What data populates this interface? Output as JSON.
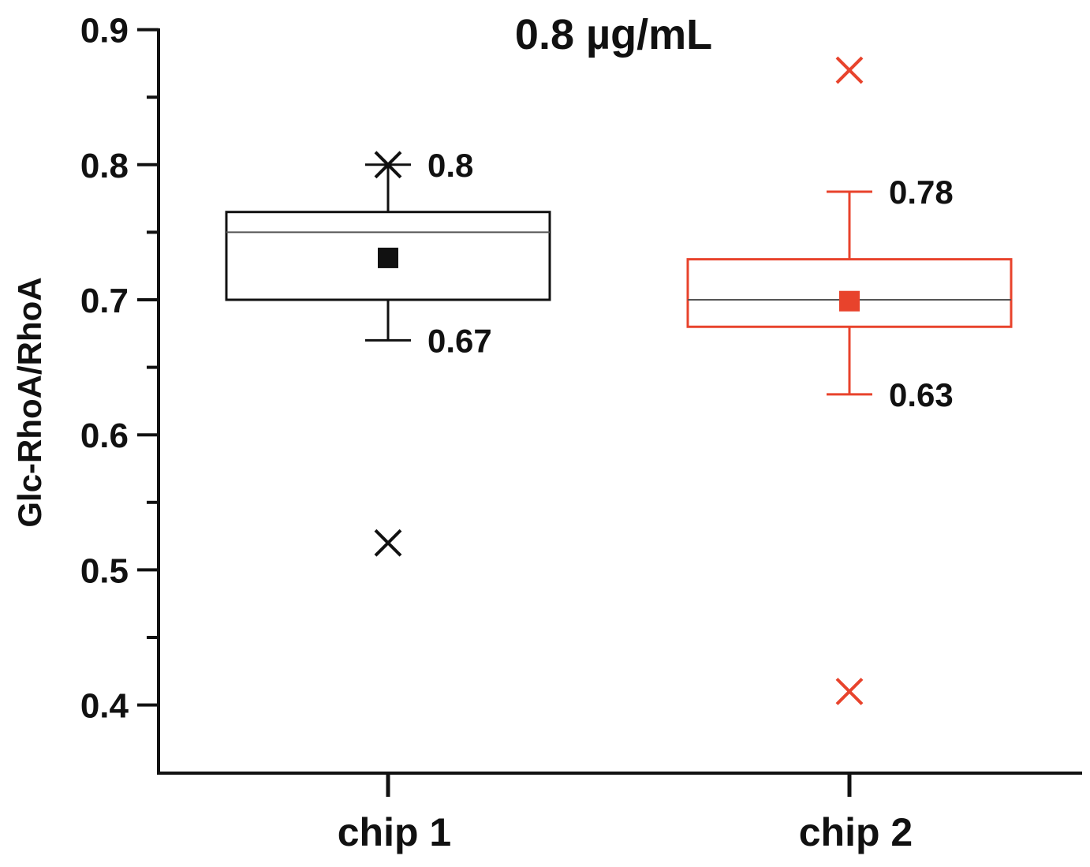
{
  "chart_data": {
    "type": "box",
    "title": "0.8 µg/mL",
    "xlabel": "",
    "ylabel": "Glc-RhoA/RhoA",
    "ylim": [
      0.35,
      0.9
    ],
    "yticks": [
      "0.4",
      "0.5",
      "0.6",
      "0.7",
      "0.8",
      "0.9"
    ],
    "grid": false,
    "categories": [
      "chip 1",
      "chip 2"
    ],
    "series": [
      {
        "color": "#111111",
        "q1": 0.7,
        "median": 0.75,
        "q3": 0.765,
        "mean": 0.731,
        "whisker_low": 0.67,
        "whisker_high": 0.8,
        "whisker_high_marker": "star",
        "outliers": [
          0.52
        ],
        "label_high": "0.8",
        "label_low": "0.67"
      },
      {
        "color": "#e8432c",
        "q1": 0.68,
        "median": 0.7,
        "q3": 0.73,
        "mean": 0.699,
        "whisker_low": 0.63,
        "whisker_high": 0.78,
        "whisker_high_marker": "cap",
        "outliers": [
          0.87,
          0.41
        ],
        "label_high": "0.78",
        "label_low": "0.63"
      }
    ]
  }
}
